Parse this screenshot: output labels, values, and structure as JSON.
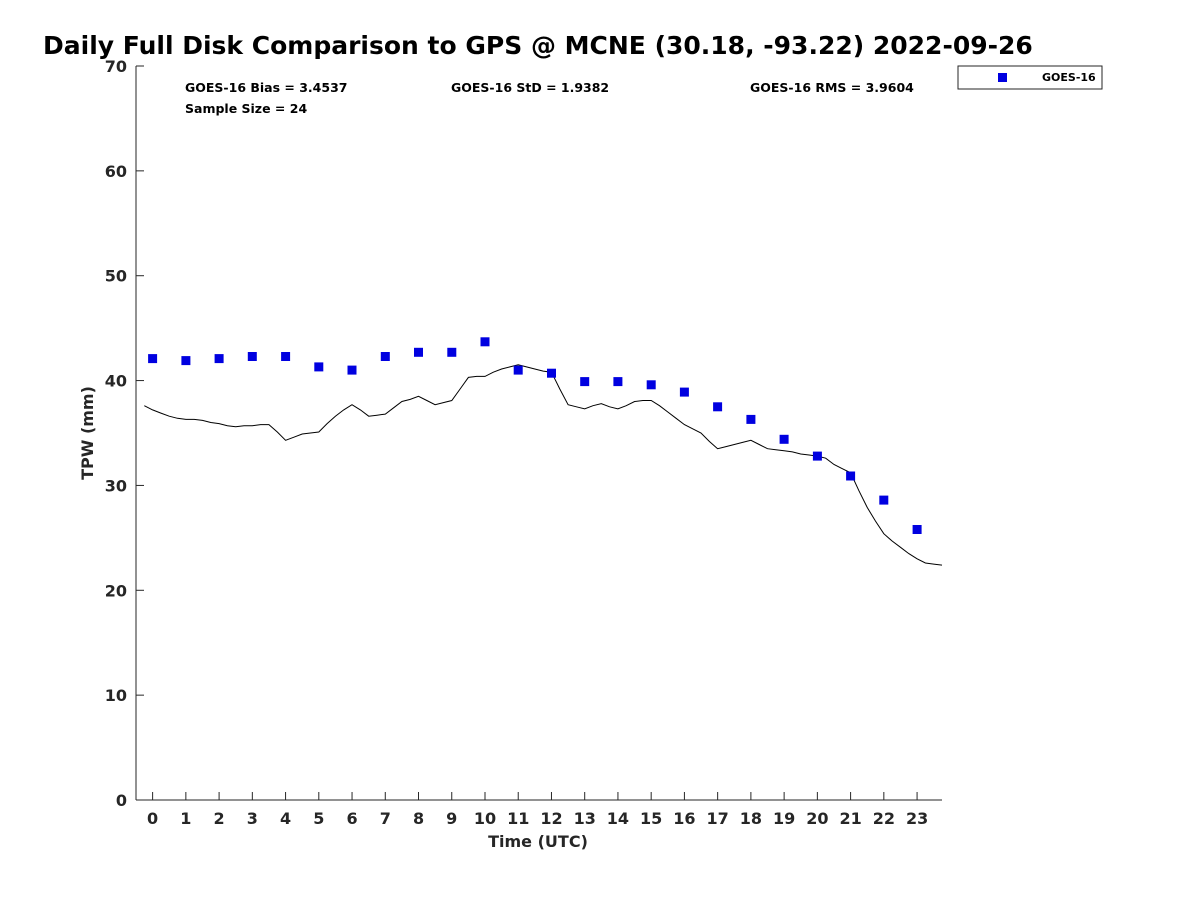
{
  "chart_data": {
    "type": "scatter",
    "title": "Daily Full Disk Comparison to GPS @ MCNE (30.18, -93.22) 2022-09-26",
    "xlabel": "Time (UTC)",
    "ylabel": "TPW (mm)",
    "xlim": [
      -0.5,
      23.75
    ],
    "ylim": [
      0,
      70
    ],
    "x_ticks": [
      0,
      1,
      2,
      3,
      4,
      5,
      6,
      7,
      8,
      9,
      10,
      11,
      12,
      13,
      14,
      15,
      16,
      17,
      18,
      19,
      20,
      21,
      22,
      23
    ],
    "y_ticks": [
      0,
      10,
      20,
      30,
      40,
      50,
      60,
      70
    ],
    "grid": false,
    "legend_position": "top-right, outside plot",
    "stats": {
      "bias": "GOES-16 Bias = 3.4537",
      "std": "GOES-16 StD = 1.9382",
      "rms": "GOES-16 RMS = 3.9604",
      "sample_size": "Sample Size = 24"
    },
    "series": [
      {
        "name": "GOES-16",
        "marker": "square",
        "color": "#0000e0",
        "x": [
          0,
          1,
          2,
          3,
          4,
          5,
          6,
          7,
          8,
          9,
          10,
          11,
          12,
          13,
          14,
          15,
          16,
          17,
          18,
          19,
          20,
          21,
          22,
          23
        ],
        "y": [
          42.1,
          41.9,
          42.1,
          42.3,
          42.3,
          41.3,
          41.0,
          42.3,
          42.7,
          42.7,
          43.7,
          41.0,
          40.7,
          39.9,
          39.9,
          39.6,
          38.9,
          37.5,
          36.3,
          34.4,
          32.8,
          30.9,
          28.6,
          25.8
        ]
      },
      {
        "marker": "line",
        "color": "#000000",
        "x": [
          -0.25,
          0,
          0.25,
          0.5,
          0.75,
          1,
          1.25,
          1.5,
          1.75,
          2,
          2.25,
          2.5,
          2.75,
          3,
          3.25,
          3.5,
          3.75,
          4,
          4.25,
          4.5,
          4.75,
          5,
          5.25,
          5.5,
          5.75,
          6,
          6.25,
          6.5,
          6.75,
          7,
          7.25,
          7.5,
          7.75,
          8,
          8.25,
          8.5,
          8.75,
          9,
          9.25,
          9.5,
          9.75,
          10,
          10.25,
          10.5,
          10.75,
          11,
          11.25,
          11.5,
          11.75,
          12,
          12.25,
          12.5,
          12.75,
          13,
          13.25,
          13.5,
          13.75,
          14,
          14.25,
          14.5,
          14.75,
          15,
          15.25,
          15.5,
          15.75,
          16,
          16.25,
          16.5,
          16.75,
          17,
          17.25,
          17.5,
          17.75,
          18,
          18.25,
          18.5,
          18.75,
          19,
          19.25,
          19.5,
          19.75,
          20,
          20.25,
          20.5,
          20.75,
          21,
          21.25,
          21.5,
          21.75,
          22,
          22.25,
          22.5,
          22.75,
          23,
          23.25,
          23.5,
          23.75
        ],
        "y": [
          37.6,
          37.2,
          36.9,
          36.6,
          36.4,
          36.3,
          36.3,
          36.2,
          36.0,
          35.9,
          35.7,
          35.6,
          35.7,
          35.7,
          35.8,
          35.8,
          35.1,
          34.3,
          34.6,
          34.9,
          35.0,
          35.1,
          35.9,
          36.6,
          37.2,
          37.7,
          37.2,
          36.6,
          36.7,
          36.8,
          37.4,
          38.0,
          38.2,
          38.5,
          38.1,
          37.7,
          37.9,
          38.1,
          39.2,
          40.3,
          40.4,
          40.4,
          40.8,
          41.1,
          41.3,
          41.5,
          41.3,
          41.1,
          40.9,
          40.8,
          39.2,
          37.7,
          37.5,
          37.3,
          37.6,
          37.8,
          37.5,
          37.3,
          37.6,
          38.0,
          38.1,
          38.1,
          37.6,
          37.0,
          36.4,
          35.8,
          35.4,
          35.0,
          34.2,
          33.5,
          33.7,
          33.9,
          34.1,
          34.3,
          33.9,
          33.5,
          33.4,
          33.3,
          33.2,
          33.0,
          32.9,
          32.8,
          32.6,
          32.0,
          31.6,
          31.2,
          29.5,
          27.9,
          26.6,
          25.4,
          24.7,
          24.1,
          23.5,
          23.0,
          22.6,
          22.5,
          22.4
        ]
      }
    ]
  }
}
